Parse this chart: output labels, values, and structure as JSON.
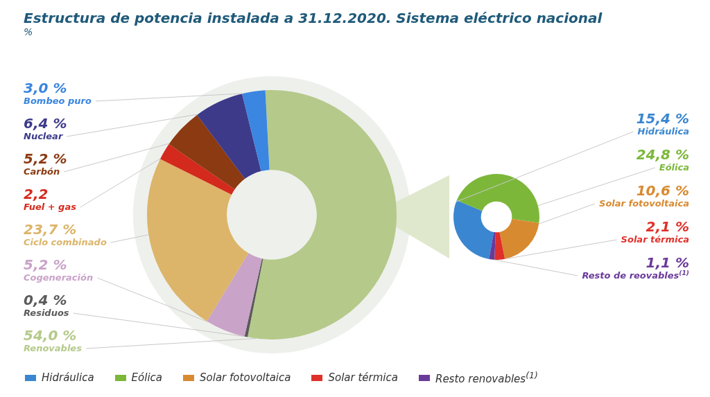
{
  "chart_data": [
    {
      "type": "donut",
      "title": "Estructura de potencia instalada a 31.12.2020. Sistema eléctrico nacional",
      "subtitle": "%",
      "categories": [
        "Bombeo puro",
        "Nuclear",
        "Carbón",
        "Fuel + gas",
        "Ciclo combinado",
        "Cogeneración",
        "Residuos",
        "Renovables"
      ],
      "values": [
        3.0,
        6.4,
        5.2,
        2.2,
        23.7,
        5.2,
        0.4,
        54.0
      ],
      "value_labels": [
        "3,0 %",
        "6,4 %",
        "5,2 %",
        "2,2",
        "23,7 %",
        "5,2 %",
        "0,4 %",
        "54,0 %"
      ],
      "colors": [
        "#3a86e0",
        "#3d3a8a",
        "#8b3a12",
        "#d42a1e",
        "#dcb56a",
        "#c9a3c8",
        "#5a5a5a",
        "#b5c98a"
      ]
    },
    {
      "type": "donut",
      "categories": [
        "Hidráulica",
        "Eólica",
        "Solar fotovoltaica",
        "Solar térmica",
        "Resto de reovables$^{(1)}$"
      ],
      "values": [
        15.4,
        24.8,
        10.6,
        2.1,
        1.1
      ],
      "value_labels": [
        "15,4 %",
        "24,8 %",
        "10,6 %",
        "2,1 %",
        "1,1 %"
      ],
      "colors": [
        "#3a86d0",
        "#7cb73a",
        "#d88a30",
        "#e0302a",
        "#6a3a9a"
      ],
      "annotations": [
        "Hidráulica",
        "Eólica",
        "Solar fotovoltaica",
        "Solar térmica",
        "Resto renovables$^{(1)}$"
      ]
    }
  ]
}
